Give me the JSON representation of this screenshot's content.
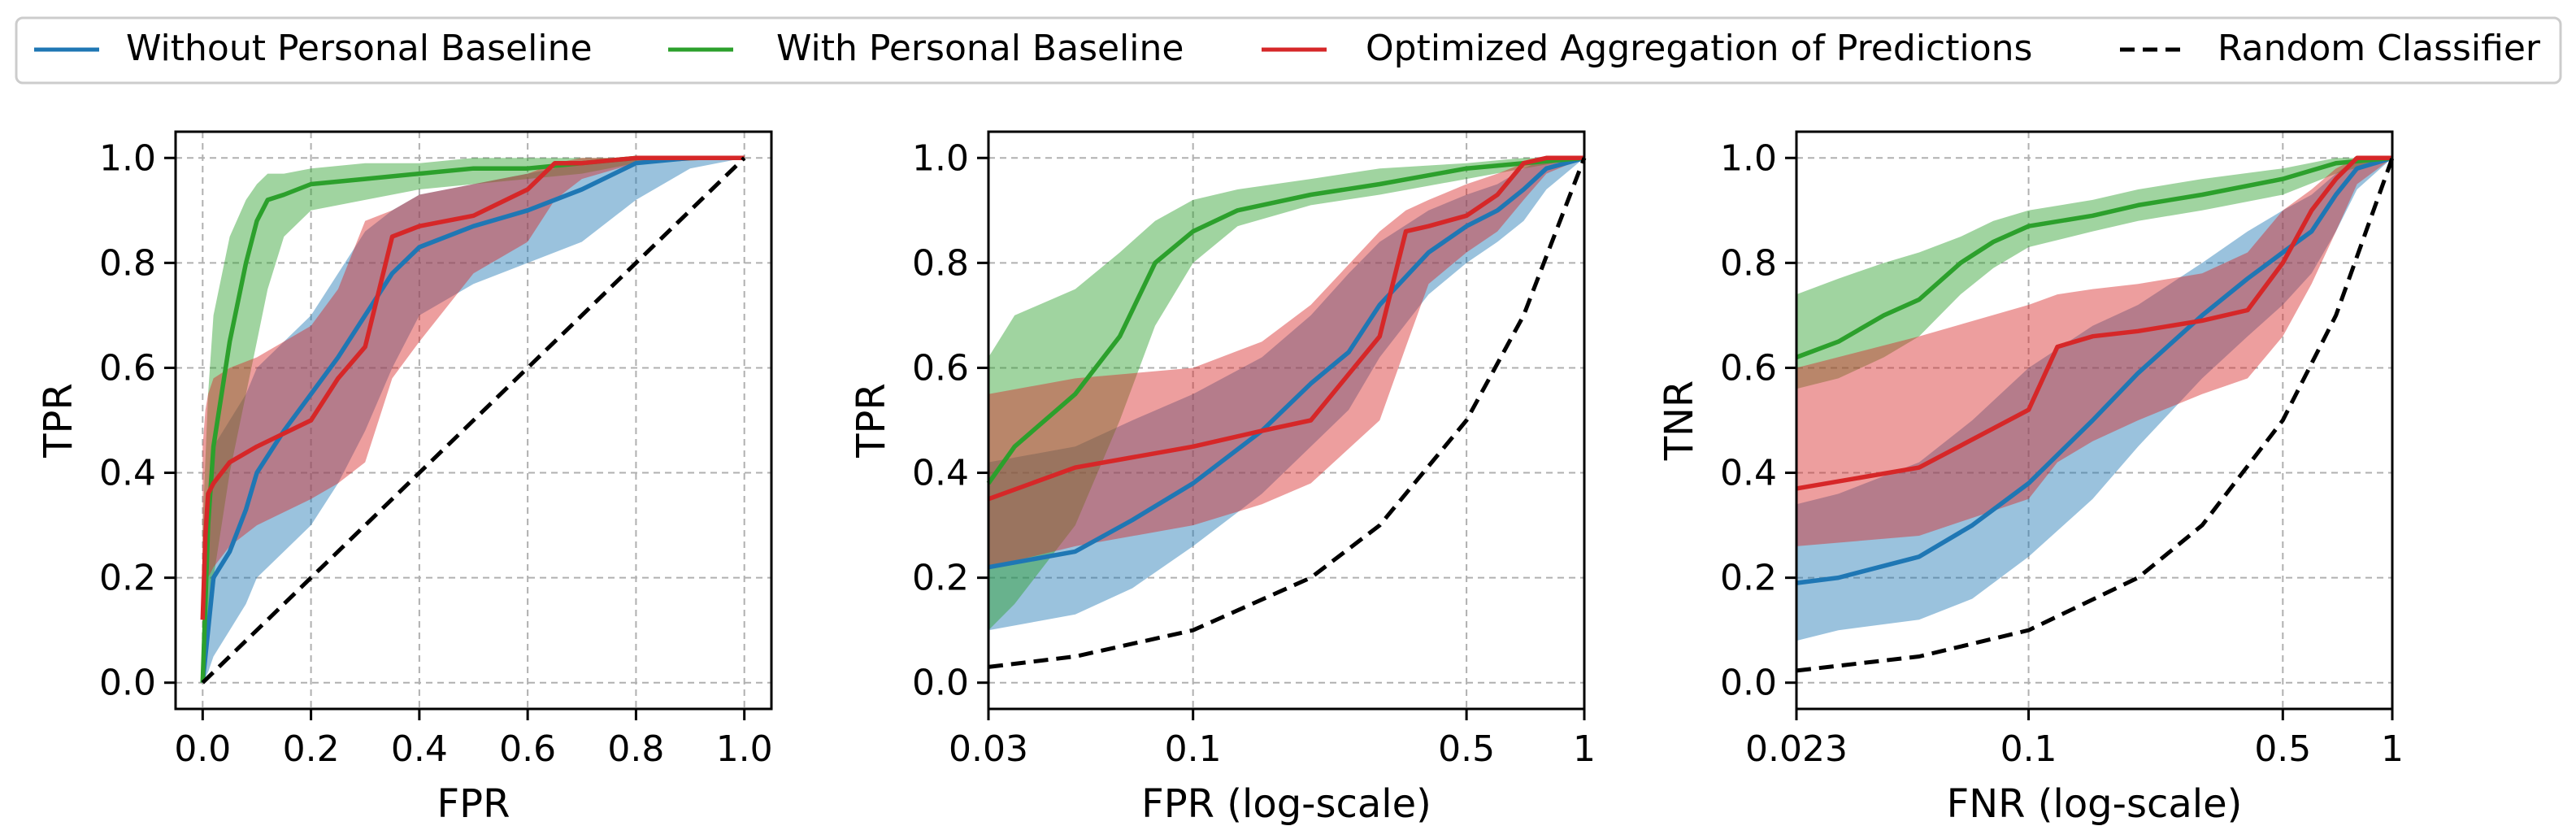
{
  "legend": {
    "placement": "top-center",
    "entries": [
      {
        "label": "Without Personal Baseline",
        "color": "#1f77b4",
        "style": "solid"
      },
      {
        "label": "With Personal Baseline",
        "color": "#2ca02c",
        "style": "solid"
      },
      {
        "label": "Optimized Aggregation of Predictions",
        "color": "#d62728",
        "style": "solid"
      },
      {
        "label": "Random Classifier",
        "color": "#000000",
        "style": "dashed"
      }
    ]
  },
  "colors": {
    "blue": "#1f77b4",
    "green": "#2ca02c",
    "red": "#d62728",
    "blue_band": "#1f77b4",
    "green_band": "#2ca02c",
    "red_band": "#d62728",
    "grid": "#b0b0b0",
    "axis": "#000000"
  },
  "chart_data": [
    {
      "type": "line",
      "id": "roc-linear",
      "xlabel": "FPR",
      "ylabel": "TPR",
      "xscale": "linear",
      "xlim": [
        -0.05,
        1.05
      ],
      "ylim": [
        -0.05,
        1.05
      ],
      "xticks": [
        0.0,
        0.2,
        0.4,
        0.6,
        0.8,
        1.0
      ],
      "xtick_labels": [
        "0.0",
        "0.2",
        "0.4",
        "0.6",
        "0.8",
        "1.0"
      ],
      "yticks": [
        0.0,
        0.2,
        0.4,
        0.6,
        0.8,
        1.0
      ],
      "ytick_labels": [
        "0.0",
        "0.2",
        "0.4",
        "0.6",
        "0.8",
        "1.0"
      ],
      "grid": true,
      "series": [
        {
          "name": "Without Personal Baseline",
          "color": "#1f77b4",
          "x": [
            0,
            0.01,
            0.02,
            0.05,
            0.08,
            0.1,
            0.15,
            0.2,
            0.25,
            0.3,
            0.35,
            0.4,
            0.5,
            0.6,
            0.7,
            0.8,
            0.9,
            1.0
          ],
          "y": [
            0,
            0.1,
            0.2,
            0.25,
            0.33,
            0.4,
            0.48,
            0.55,
            0.62,
            0.7,
            0.78,
            0.83,
            0.87,
            0.9,
            0.94,
            0.99,
            1.0,
            1.0
          ],
          "lower": [
            0,
            0.02,
            0.05,
            0.1,
            0.15,
            0.2,
            0.25,
            0.3,
            0.38,
            0.48,
            0.6,
            0.7,
            0.76,
            0.8,
            0.84,
            0.92,
            0.98,
            1.0
          ],
          "upper": [
            0.1,
            0.35,
            0.45,
            0.5,
            0.55,
            0.6,
            0.65,
            0.7,
            0.78,
            0.86,
            0.9,
            0.93,
            0.95,
            0.97,
            0.99,
            1.0,
            1.0,
            1.0
          ]
        },
        {
          "name": "With Personal Baseline",
          "color": "#2ca02c",
          "x": [
            0,
            0.01,
            0.02,
            0.05,
            0.08,
            0.1,
            0.12,
            0.15,
            0.2,
            0.3,
            0.4,
            0.5,
            0.6,
            0.7,
            0.8,
            1.0
          ],
          "y": [
            0,
            0.3,
            0.45,
            0.65,
            0.8,
            0.88,
            0.92,
            0.93,
            0.95,
            0.96,
            0.97,
            0.98,
            0.98,
            0.99,
            1.0,
            1.0
          ],
          "lower": [
            0,
            0.1,
            0.2,
            0.4,
            0.55,
            0.65,
            0.75,
            0.85,
            0.9,
            0.92,
            0.94,
            0.95,
            0.96,
            0.97,
            0.99,
            1.0
          ],
          "upper": [
            0.3,
            0.55,
            0.7,
            0.85,
            0.92,
            0.95,
            0.97,
            0.97,
            0.98,
            0.99,
            0.99,
            1.0,
            1.0,
            1.0,
            1.0,
            1.0
          ]
        },
        {
          "name": "Optimized Aggregation of Predictions",
          "color": "#d62728",
          "x": [
            0,
            0.005,
            0.01,
            0.02,
            0.05,
            0.1,
            0.2,
            0.25,
            0.3,
            0.35,
            0.4,
            0.5,
            0.6,
            0.65,
            0.7,
            0.8,
            1.0
          ],
          "y": [
            0.12,
            0.28,
            0.36,
            0.38,
            0.42,
            0.45,
            0.5,
            0.58,
            0.64,
            0.85,
            0.87,
            0.89,
            0.94,
            0.99,
            0.99,
            1.0,
            1.0
          ],
          "lower": [
            0,
            0.1,
            0.2,
            0.22,
            0.26,
            0.3,
            0.35,
            0.38,
            0.42,
            0.58,
            0.65,
            0.78,
            0.84,
            0.92,
            0.96,
            0.99,
            1.0
          ],
          "upper": [
            0.45,
            0.52,
            0.55,
            0.58,
            0.6,
            0.62,
            0.68,
            0.75,
            0.88,
            0.9,
            0.93,
            0.95,
            0.97,
            0.99,
            1.0,
            1.0,
            1.0
          ]
        },
        {
          "name": "Random Classifier",
          "color": "#000000",
          "dashed": true,
          "x": [
            0,
            1
          ],
          "y": [
            0,
            1
          ]
        }
      ]
    },
    {
      "type": "line",
      "id": "roc-log",
      "xlabel": "FPR (log-scale)",
      "ylabel": "TPR",
      "xscale": "log",
      "xlim": [
        0.03,
        1.0
      ],
      "ylim": [
        -0.05,
        1.05
      ],
      "xticks": [
        0.03,
        0.1,
        0.5,
        1
      ],
      "xtick_labels": [
        "0.03",
        "0.1",
        "0.5",
        "1"
      ],
      "yticks": [
        0.0,
        0.2,
        0.4,
        0.6,
        0.8,
        1.0
      ],
      "ytick_labels": [
        "0.0",
        "0.2",
        "0.4",
        "0.6",
        "0.8",
        "1.0"
      ],
      "grid": true,
      "series": [
        {
          "name": "Without Personal Baseline",
          "color": "#1f77b4",
          "x": [
            0.03,
            0.05,
            0.07,
            0.1,
            0.15,
            0.2,
            0.25,
            0.3,
            0.4,
            0.5,
            0.6,
            0.7,
            0.8,
            1.0
          ],
          "y": [
            0.22,
            0.25,
            0.31,
            0.38,
            0.48,
            0.57,
            0.63,
            0.72,
            0.82,
            0.87,
            0.9,
            0.94,
            0.98,
            1.0
          ],
          "lower": [
            0.1,
            0.13,
            0.18,
            0.26,
            0.36,
            0.45,
            0.52,
            0.62,
            0.74,
            0.8,
            0.84,
            0.88,
            0.94,
            1.0
          ],
          "upper": [
            0.42,
            0.45,
            0.5,
            0.55,
            0.62,
            0.7,
            0.78,
            0.84,
            0.9,
            0.93,
            0.95,
            0.98,
            1.0,
            1.0
          ]
        },
        {
          "name": "With Personal Baseline",
          "color": "#2ca02c",
          "x": [
            0.03,
            0.035,
            0.05,
            0.065,
            0.08,
            0.1,
            0.13,
            0.2,
            0.3,
            0.5,
            0.7,
            1.0
          ],
          "y": [
            0.38,
            0.45,
            0.55,
            0.66,
            0.8,
            0.86,
            0.9,
            0.93,
            0.95,
            0.98,
            0.99,
            1.0
          ],
          "lower": [
            0.1,
            0.15,
            0.3,
            0.5,
            0.68,
            0.8,
            0.87,
            0.91,
            0.93,
            0.96,
            0.98,
            1.0
          ],
          "upper": [
            0.62,
            0.7,
            0.75,
            0.82,
            0.88,
            0.92,
            0.94,
            0.96,
            0.98,
            0.99,
            1.0,
            1.0
          ]
        },
        {
          "name": "Optimized Aggregation of Predictions",
          "color": "#d62728",
          "x": [
            0.03,
            0.05,
            0.1,
            0.15,
            0.2,
            0.3,
            0.35,
            0.4,
            0.5,
            0.6,
            0.7,
            0.8,
            1.0
          ],
          "y": [
            0.35,
            0.41,
            0.45,
            0.48,
            0.5,
            0.66,
            0.86,
            0.87,
            0.89,
            0.93,
            0.99,
            1.0,
            1.0
          ],
          "lower": [
            0.22,
            0.26,
            0.3,
            0.34,
            0.38,
            0.5,
            0.64,
            0.76,
            0.82,
            0.86,
            0.92,
            0.97,
            1.0
          ],
          "upper": [
            0.55,
            0.58,
            0.6,
            0.65,
            0.72,
            0.86,
            0.9,
            0.92,
            0.95,
            0.97,
            0.99,
            1.0,
            1.0
          ]
        },
        {
          "name": "Random Classifier",
          "color": "#000000",
          "dashed": true,
          "x": [
            0.03,
            0.05,
            0.1,
            0.2,
            0.3,
            0.5,
            0.7,
            1.0
          ],
          "y": [
            0.03,
            0.05,
            0.1,
            0.2,
            0.3,
            0.5,
            0.7,
            1.0
          ]
        }
      ]
    },
    {
      "type": "line",
      "id": "det-log",
      "xlabel": "FNR (log-scale)",
      "ylabel": "TNR",
      "xscale": "log",
      "xlim": [
        0.023,
        1.0
      ],
      "ylim": [
        -0.05,
        1.05
      ],
      "xticks": [
        0.023,
        0.1,
        0.5,
        1
      ],
      "xtick_labels": [
        "0.023",
        "0.1",
        "0.5",
        "1"
      ],
      "yticks": [
        0.0,
        0.2,
        0.4,
        0.6,
        0.8,
        1.0
      ],
      "ytick_labels": [
        "0.0",
        "0.2",
        "0.4",
        "0.6",
        "0.8",
        "1.0"
      ],
      "grid": true,
      "series": [
        {
          "name": "Without Personal Baseline",
          "color": "#1f77b4",
          "x": [
            0.023,
            0.03,
            0.05,
            0.07,
            0.1,
            0.15,
            0.2,
            0.3,
            0.4,
            0.5,
            0.6,
            0.7,
            0.8,
            1.0
          ],
          "y": [
            0.19,
            0.2,
            0.24,
            0.3,
            0.38,
            0.5,
            0.59,
            0.7,
            0.77,
            0.82,
            0.86,
            0.93,
            0.98,
            1.0
          ],
          "lower": [
            0.08,
            0.1,
            0.12,
            0.16,
            0.24,
            0.35,
            0.45,
            0.58,
            0.66,
            0.72,
            0.78,
            0.86,
            0.94,
            1.0
          ],
          "upper": [
            0.34,
            0.36,
            0.42,
            0.5,
            0.6,
            0.68,
            0.72,
            0.8,
            0.86,
            0.9,
            0.93,
            0.97,
            1.0,
            1.0
          ]
        },
        {
          "name": "With Personal Baseline",
          "color": "#2ca02c",
          "x": [
            0.023,
            0.03,
            0.04,
            0.05,
            0.065,
            0.08,
            0.1,
            0.15,
            0.2,
            0.3,
            0.5,
            0.7,
            1.0
          ],
          "y": [
            0.62,
            0.65,
            0.7,
            0.73,
            0.8,
            0.84,
            0.87,
            0.89,
            0.91,
            0.93,
            0.96,
            0.99,
            1.0
          ],
          "lower": [
            0.56,
            0.58,
            0.62,
            0.66,
            0.74,
            0.79,
            0.83,
            0.86,
            0.88,
            0.9,
            0.93,
            0.97,
            1.0
          ],
          "upper": [
            0.74,
            0.77,
            0.8,
            0.82,
            0.85,
            0.88,
            0.9,
            0.92,
            0.94,
            0.96,
            0.98,
            1.0,
            1.0
          ]
        },
        {
          "name": "Optimized Aggregation of Predictions",
          "color": "#d62728",
          "x": [
            0.023,
            0.05,
            0.1,
            0.12,
            0.15,
            0.2,
            0.3,
            0.4,
            0.5,
            0.6,
            0.7,
            0.8,
            1.0
          ],
          "y": [
            0.37,
            0.41,
            0.52,
            0.64,
            0.66,
            0.67,
            0.69,
            0.71,
            0.8,
            0.9,
            0.96,
            1.0,
            1.0
          ],
          "lower": [
            0.26,
            0.28,
            0.35,
            0.42,
            0.46,
            0.5,
            0.55,
            0.58,
            0.66,
            0.76,
            0.86,
            0.95,
            1.0
          ],
          "upper": [
            0.6,
            0.66,
            0.72,
            0.74,
            0.75,
            0.76,
            0.78,
            0.82,
            0.9,
            0.94,
            0.98,
            1.0,
            1.0
          ]
        },
        {
          "name": "Random Classifier",
          "color": "#000000",
          "dashed": true,
          "x": [
            0.023,
            0.05,
            0.1,
            0.2,
            0.3,
            0.5,
            0.7,
            1.0
          ],
          "y": [
            0.023,
            0.05,
            0.1,
            0.2,
            0.3,
            0.5,
            0.7,
            1.0
          ]
        }
      ]
    }
  ]
}
